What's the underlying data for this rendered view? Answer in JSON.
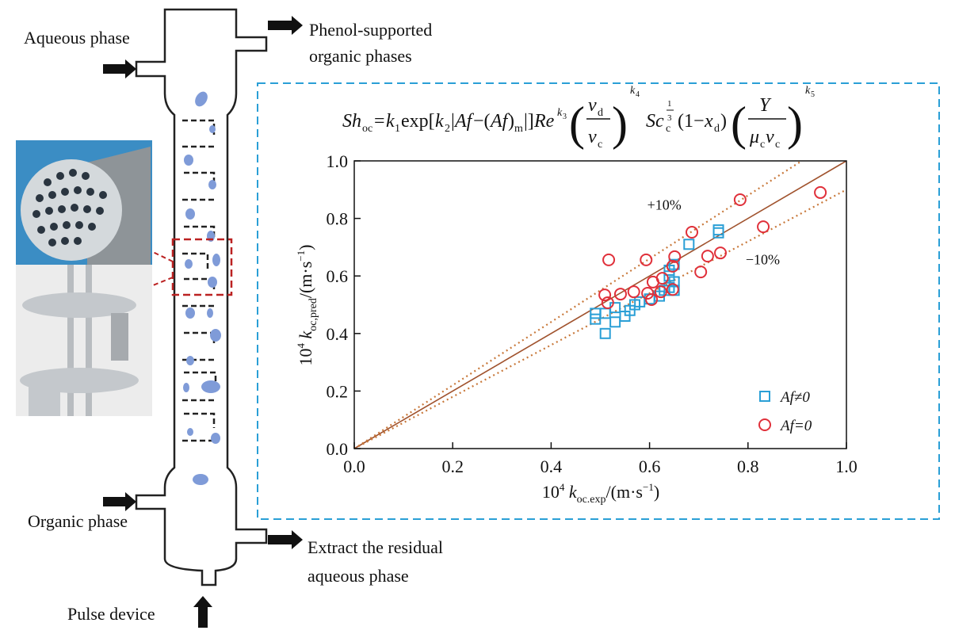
{
  "diagram": {
    "aqueous_inlet": "Aqueous phase",
    "organic_outlet": [
      "Phenol-supported",
      "organic phases"
    ],
    "organic_inlet": "Organic phase",
    "aqueous_outlet": [
      "Extract the residual",
      "aqueous phase"
    ],
    "pulse": "Pulse device"
  },
  "chart_data": {
    "type": "scatter",
    "equation": [
      "Sh",
      "oc",
      "=",
      "k",
      "1",
      "exp[",
      "k",
      "2",
      "|",
      "Af",
      "−(",
      "Af",
      ")",
      "m",
      "|]",
      "Re",
      "k",
      "3",
      "(",
      "v",
      "d",
      "v",
      "c",
      ")",
      "k",
      "4",
      "Sc",
      "c",
      "1",
      "3",
      "(1−",
      "x",
      "d",
      ")",
      "(",
      "Y",
      "μ",
      "c",
      "v",
      "c",
      ")",
      "k",
      "5"
    ],
    "x_label": [
      "10",
      "4",
      " k",
      "oc.exp",
      "/(m·s",
      "−1",
      ")"
    ],
    "y_label": [
      "10",
      "4",
      " k",
      "oc,pred",
      "/(m·s",
      "−1",
      ")"
    ],
    "xlim": [
      0,
      1.0
    ],
    "ylim": [
      0,
      1.0
    ],
    "xticks": [
      {
        "value": 0,
        "label": "0.0"
      },
      0.2,
      0.4,
      0.6,
      0.8,
      {
        "value": 1,
        "label": "1.0"
      }
    ],
    "yticks": [
      {
        "value": 0,
        "label": "0.0"
      },
      0.2,
      0.4,
      0.6,
      0.8,
      {
        "value": 1,
        "label": "1.0"
      }
    ],
    "reference_lines": [
      {
        "slope": 1,
        "color": "#a0522d"
      },
      {
        "slope": 1.1,
        "color": "#c8783a",
        "label": "+10%"
      },
      {
        "slope": 0.9,
        "color": "#c8783a",
        "label": "−10%"
      }
    ],
    "legend": "lower right",
    "series": [
      {
        "name": "Af≠0",
        "color": "#2a9fd6",
        "marker": "square",
        "x": [
          0.49,
          0.49,
          0.51,
          0.51,
          0.53,
          0.53,
          0.55,
          0.56,
          0.57,
          0.58,
          0.6,
          0.62,
          0.63,
          0.64,
          0.65,
          0.65,
          0.64,
          0.64,
          0.65,
          0.68,
          0.74,
          0.74
        ],
        "values": [
          0.47,
          0.45,
          0.47,
          0.4,
          0.44,
          0.49,
          0.46,
          0.48,
          0.5,
          0.51,
          0.52,
          0.53,
          0.55,
          0.56,
          0.55,
          0.58,
          0.6,
          0.62,
          0.64,
          0.71,
          0.75,
          0.76
        ]
      },
      {
        "name": "Af=0",
        "color": "#e0303a",
        "marker": "circle",
        "x": [
          0.517,
          0.593,
          0.651,
          0.686,
          0.784,
          0.947,
          0.831,
          0.744,
          0.718,
          0.704,
          0.647,
          0.509,
          0.515,
          0.541,
          0.568,
          0.596,
          0.607,
          0.604,
          0.626,
          0.623,
          0.647
        ],
        "values": [
          0.656,
          0.656,
          0.667,
          0.752,
          0.865,
          0.89,
          0.771,
          0.68,
          0.669,
          0.614,
          0.634,
          0.534,
          0.507,
          0.537,
          0.545,
          0.54,
          0.579,
          0.518,
          0.592,
          0.545,
          0.553
        ]
      }
    ]
  }
}
